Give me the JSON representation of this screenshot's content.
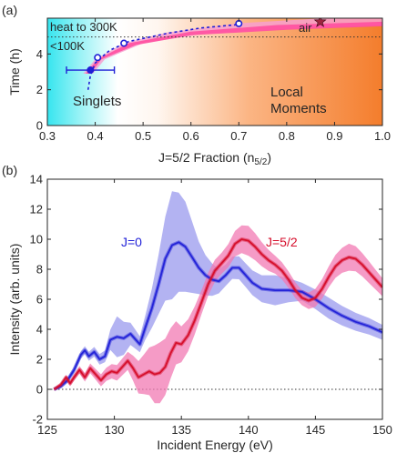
{
  "chart_data": [
    {
      "panel_label": "(a)",
      "type": "scatter",
      "xlabel": "J=5/2 Fraction (n",
      "xlabel_sub": "5/2",
      "xlabel_close": ")",
      "ylabel": "Time (h)",
      "xlim": [
        0.3,
        1.0
      ],
      "ylim": [
        0,
        6
      ],
      "xticks": [
        "0.3",
        "0.4",
        "0.5",
        "0.6",
        "0.7",
        "0.8",
        "0.9",
        "1.0"
      ],
      "yticks": [
        "0",
        "2",
        "4"
      ],
      "background_regions": [
        {
          "label": "Singlets",
          "color": "#3fe6ee",
          "x_end": 0.5
        },
        {
          "label_line1": "Local",
          "label_line2": "Moments",
          "color": "#f58232",
          "x_start": 0.5
        }
      ],
      "annotations": [
        {
          "text": "heat to 300K",
          "at_y": 5.2
        },
        {
          "text": "<100K",
          "at_y": 4.3
        },
        {
          "text": "air",
          "at_x": 0.87
        }
      ],
      "threshold_line_y": 4.95,
      "points": [
        {
          "x": 0.39,
          "y": 3.1,
          "x_err": 0.05,
          "filled": true
        },
        {
          "x": 0.405,
          "y": 3.8,
          "filled": false
        },
        {
          "x": 0.46,
          "y": 4.6,
          "filled": false
        },
        {
          "x": 0.7,
          "y": 5.7,
          "filled": false
        }
      ],
      "air_point": {
        "x": 0.87,
        "y": 5.8,
        "color": "#a0253f"
      },
      "trend_curve": [
        [
          0.385,
          2.0
        ],
        [
          0.39,
          2.8
        ],
        [
          0.4,
          3.5
        ],
        [
          0.43,
          4.2
        ],
        [
          0.47,
          4.7
        ],
        [
          0.55,
          5.15
        ],
        [
          0.62,
          5.45
        ],
        [
          0.7,
          5.65
        ]
      ],
      "band": {
        "upper": [
          [
            0.375,
            2.9
          ],
          [
            0.4,
            3.7
          ],
          [
            0.46,
            4.6
          ],
          [
            0.55,
            5.2
          ],
          [
            0.7,
            5.72
          ],
          [
            0.88,
            6.0
          ],
          [
            1.0,
            6.0
          ]
        ],
        "lower": [
          [
            0.395,
            2.9
          ],
          [
            0.42,
            3.7
          ],
          [
            0.5,
            4.6
          ],
          [
            0.62,
            5.1
          ],
          [
            0.8,
            5.4
          ],
          [
            1.0,
            5.6
          ]
        ],
        "inner_upper": [
          [
            0.38,
            2.9
          ],
          [
            0.405,
            3.7
          ],
          [
            0.47,
            4.6
          ],
          [
            0.6,
            5.25
          ],
          [
            0.78,
            5.62
          ],
          [
            1.0,
            5.8
          ]
        ],
        "inner_lower": [
          [
            0.39,
            2.9
          ],
          [
            0.413,
            3.7
          ],
          [
            0.485,
            4.5
          ],
          [
            0.6,
            5.05
          ],
          [
            0.8,
            5.35
          ],
          [
            1.0,
            5.55
          ]
        ]
      },
      "series_color": "#1f1fd6",
      "band_color": "#ff4fa0"
    },
    {
      "panel_label": "(b)",
      "type": "line",
      "xlabel": "Incident Energy (eV)",
      "ylabel": "Intensity (arb. units)",
      "xlim": [
        125,
        150
      ],
      "ylim": [
        -2,
        14
      ],
      "xticks": [
        "125",
        "130",
        "135",
        "140",
        "145",
        "150"
      ],
      "yticks": [
        "-2",
        "0",
        "2",
        "4",
        "6",
        "8",
        "10",
        "12",
        "14"
      ],
      "zero_line": true,
      "series": [
        {
          "name": "J=0",
          "color": "#2323d8",
          "band_color": "#9a9aee",
          "points": [
            [
              125.5,
              0.0
            ],
            [
              126.0,
              0.2
            ],
            [
              126.5,
              0.6
            ],
            [
              127.0,
              1.3
            ],
            [
              127.5,
              2.3
            ],
            [
              127.8,
              2.6
            ],
            [
              128.1,
              2.2
            ],
            [
              128.5,
              2.5
            ],
            [
              128.9,
              2.0
            ],
            [
              129.3,
              2.2
            ],
            [
              129.7,
              3.3
            ],
            [
              130.2,
              3.5
            ],
            [
              130.7,
              3.4
            ],
            [
              131.2,
              3.7
            ],
            [
              131.6,
              3.3
            ],
            [
              131.9,
              3.0
            ],
            [
              132.3,
              4.1
            ],
            [
              132.8,
              5.4
            ],
            [
              133.3,
              7.0
            ],
            [
              133.8,
              8.7
            ],
            [
              134.3,
              9.6
            ],
            [
              134.8,
              9.8
            ],
            [
              135.3,
              9.5
            ],
            [
              135.8,
              8.8
            ],
            [
              136.3,
              8.1
            ],
            [
              136.8,
              7.6
            ],
            [
              137.3,
              7.3
            ],
            [
              137.8,
              7.2
            ],
            [
              138.3,
              7.6
            ],
            [
              138.8,
              8.1
            ],
            [
              139.3,
              8.1
            ],
            [
              139.8,
              7.6
            ],
            [
              140.3,
              7.1
            ],
            [
              141.0,
              6.7
            ],
            [
              142.0,
              6.6
            ],
            [
              143.0,
              6.6
            ],
            [
              144.0,
              6.5
            ],
            [
              145.0,
              6.0
            ],
            [
              146.0,
              5.4
            ],
            [
              147.0,
              4.9
            ],
            [
              148.0,
              4.5
            ],
            [
              149.0,
              4.2
            ],
            [
              150.0,
              3.8
            ]
          ],
          "band_halfwidth": [
            [
              125.5,
              0.1
            ],
            [
              129.5,
              0.4
            ],
            [
              130.3,
              1.5
            ],
            [
              131.0,
              0.8
            ],
            [
              132.0,
              0.5
            ],
            [
              133.0,
              1.5
            ],
            [
              134.3,
              3.6
            ],
            [
              135.3,
              3.0
            ],
            [
              136.5,
              1.5
            ],
            [
              138.0,
              0.7
            ],
            [
              140.0,
              0.8
            ],
            [
              142.0,
              1.0
            ],
            [
              144.0,
              0.6
            ],
            [
              146.0,
              0.7
            ],
            [
              148.0,
              0.6
            ],
            [
              150.0,
              0.5
            ]
          ]
        },
        {
          "name": "J=5/2",
          "color": "#d60f2c",
          "band_color": "#f27ab3",
          "points": [
            [
              125.5,
              0.0
            ],
            [
              126.0,
              0.3
            ],
            [
              126.4,
              0.8
            ],
            [
              126.7,
              0.4
            ],
            [
              127.0,
              0.8
            ],
            [
              127.4,
              1.3
            ],
            [
              127.8,
              0.8
            ],
            [
              128.2,
              1.4
            ],
            [
              128.6,
              1.0
            ],
            [
              129.0,
              0.6
            ],
            [
              129.4,
              1.0
            ],
            [
              129.8,
              1.2
            ],
            [
              130.2,
              1.1
            ],
            [
              130.6,
              1.5
            ],
            [
              131.0,
              1.9
            ],
            [
              131.4,
              1.4
            ],
            [
              131.8,
              0.8
            ],
            [
              132.2,
              1.0
            ],
            [
              132.6,
              1.2
            ],
            [
              133.0,
              1.0
            ],
            [
              133.4,
              1.1
            ],
            [
              133.8,
              1.5
            ],
            [
              134.2,
              2.4
            ],
            [
              134.6,
              3.1
            ],
            [
              135.0,
              3.0
            ],
            [
              135.5,
              3.6
            ],
            [
              136.0,
              4.6
            ],
            [
              136.5,
              5.8
            ],
            [
              137.0,
              7.0
            ],
            [
              137.5,
              7.9
            ],
            [
              138.0,
              8.4
            ],
            [
              138.5,
              8.9
            ],
            [
              139.0,
              9.7
            ],
            [
              139.5,
              10.0
            ],
            [
              140.0,
              9.9
            ],
            [
              140.5,
              9.5
            ],
            [
              141.0,
              9.0
            ],
            [
              141.5,
              8.6
            ],
            [
              142.0,
              8.3
            ],
            [
              142.5,
              7.9
            ],
            [
              143.0,
              7.3
            ],
            [
              143.5,
              6.6
            ],
            [
              144.0,
              6.1
            ],
            [
              144.5,
              5.9
            ],
            [
              145.0,
              6.1
            ],
            [
              145.5,
              6.7
            ],
            [
              146.0,
              7.5
            ],
            [
              146.5,
              8.2
            ],
            [
              147.0,
              8.6
            ],
            [
              147.5,
              8.8
            ],
            [
              148.0,
              8.7
            ],
            [
              148.5,
              8.3
            ],
            [
              149.0,
              7.8
            ],
            [
              149.5,
              7.3
            ],
            [
              150.0,
              6.8
            ]
          ],
          "band_halfwidth": [
            [
              125.5,
              0.1
            ],
            [
              128.0,
              0.3
            ],
            [
              130.0,
              0.5
            ],
            [
              131.0,
              0.6
            ],
            [
              132.5,
              1.5
            ],
            [
              133.2,
              2.1
            ],
            [
              134.0,
              1.8
            ],
            [
              135.0,
              1.2
            ],
            [
              136.5,
              0.8
            ],
            [
              138.0,
              0.7
            ],
            [
              140.0,
              1.0
            ],
            [
              142.0,
              0.6
            ],
            [
              144.0,
              0.5
            ],
            [
              146.0,
              0.7
            ],
            [
              147.5,
              0.9
            ],
            [
              150.0,
              0.6
            ]
          ]
        }
      ]
    }
  ]
}
